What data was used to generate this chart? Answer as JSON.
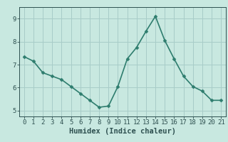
{
  "x": [
    0,
    1,
    2,
    3,
    4,
    5,
    6,
    7,
    8,
    9,
    10,
    11,
    12,
    13,
    14,
    15,
    16,
    17,
    18,
    19,
    20,
    21
  ],
  "y": [
    7.35,
    7.15,
    6.65,
    6.5,
    6.35,
    6.05,
    5.75,
    5.45,
    5.15,
    5.2,
    6.05,
    7.25,
    7.75,
    8.45,
    9.1,
    8.05,
    7.25,
    6.5,
    6.05,
    5.85,
    5.45,
    5.45
  ],
  "line_color": "#2e7d6e",
  "marker_color": "#2e7d6e",
  "bg_color": "#c8e8e0",
  "grid_color": "#a8ccc8",
  "axis_color": "#2e5050",
  "xlabel": "Humidex (Indice chaleur)",
  "ylim": [
    4.75,
    9.5
  ],
  "xlim": [
    -0.5,
    21.5
  ],
  "yticks": [
    5,
    6,
    7,
    8,
    9
  ],
  "xticks": [
    0,
    1,
    2,
    3,
    4,
    5,
    6,
    7,
    8,
    9,
    10,
    11,
    12,
    13,
    14,
    15,
    16,
    17,
    18,
    19,
    20,
    21
  ],
  "xlabel_fontsize": 7.5,
  "tick_fontsize": 6.5,
  "line_width": 1.2,
  "marker_size": 2.5
}
